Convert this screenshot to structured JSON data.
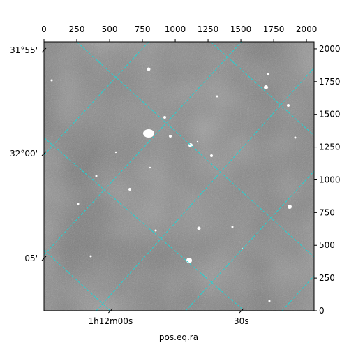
{
  "chart_data": {
    "type": "image",
    "xlabel": "pos.eq.ra",
    "xlim": [
      0,
      2058
    ],
    "ylim": [
      0,
      2053
    ],
    "xticks": [
      0,
      250,
      500,
      750,
      1000,
      1250,
      1500,
      1750,
      2000
    ],
    "yticks": [
      0,
      250,
      500,
      750,
      1000,
      1250,
      1500,
      1750,
      2000
    ],
    "dec_ticks": [
      {
        "value": 1989,
        "label": "31°55'"
      },
      {
        "value": 1200,
        "label": "32°00'"
      },
      {
        "value": 400,
        "label": "05'"
      }
    ],
    "ra_ticks": [
      {
        "value": 507,
        "label": "1h12m00s"
      },
      {
        "value": 1504,
        "label": "30s"
      }
    ],
    "grid_color": "#22d3d3"
  }
}
